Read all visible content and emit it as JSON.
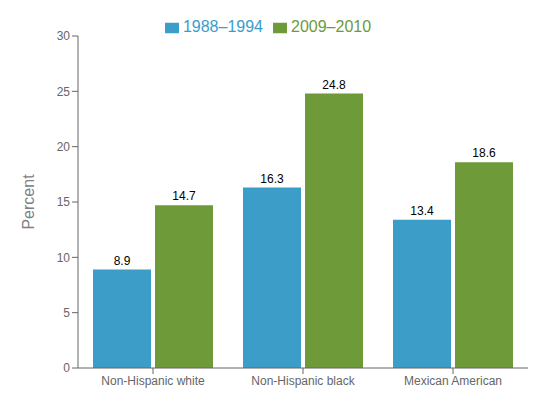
{
  "chart_data": {
    "type": "bar",
    "categories": [
      "Non-Hispanic white",
      "Non-Hispanic black",
      "Mexican American"
    ],
    "series": [
      {
        "name": "1988–1994",
        "color": "#3b9dc8",
        "values": [
          8.9,
          16.3,
          13.4
        ]
      },
      {
        "name": "2009–2010",
        "color": "#6e9a3a",
        "values": [
          14.7,
          24.8,
          18.6
        ]
      }
    ],
    "y_label": "Percent",
    "ylim": [
      0,
      30
    ],
    "yticks": [
      0,
      5,
      10,
      15,
      20,
      25,
      30
    ],
    "grid": false,
    "legend": "top",
    "data_labels": true
  }
}
